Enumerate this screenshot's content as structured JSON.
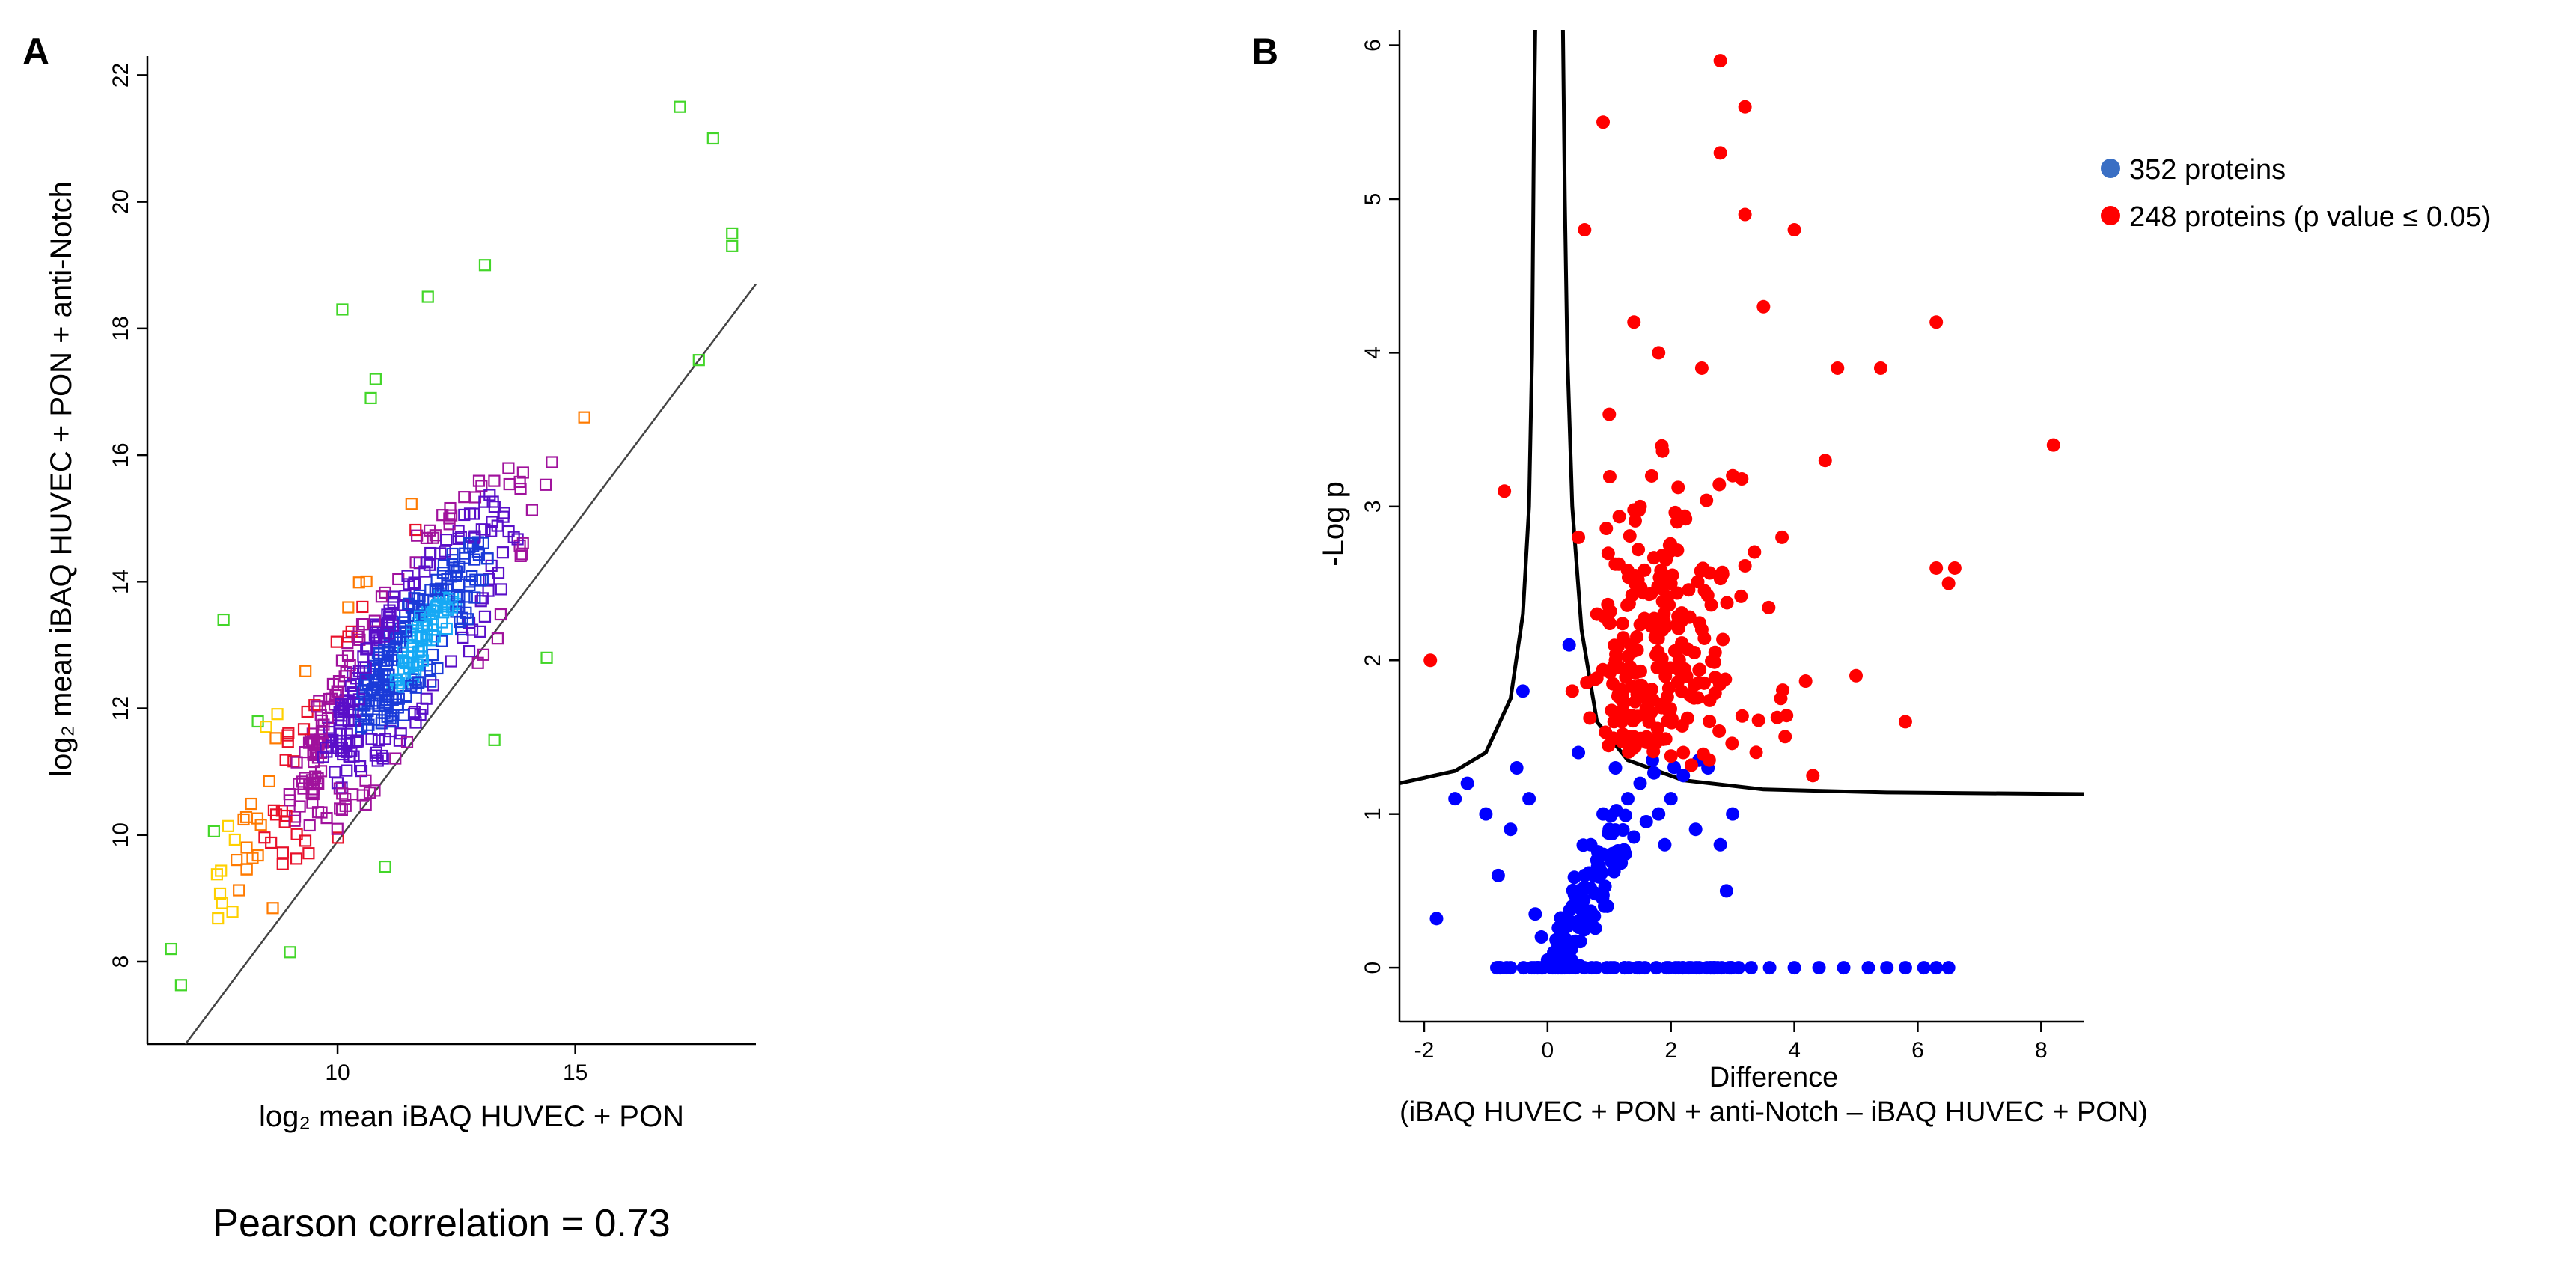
{
  "panels": {
    "a": {
      "letter": "A"
    },
    "b": {
      "letter": "B"
    }
  },
  "chart_data": [
    {
      "type": "scatter",
      "panel": "A",
      "xlabel": "log₂ mean iBAQ HUVEC + PON",
      "ylabel": "log₂ mean iBAQ HUVEC + PON + anti-Notch",
      "xlim": [
        6.0,
        18.8
      ],
      "ylim": [
        6.7,
        22.3
      ],
      "xticks": [
        10,
        15
      ],
      "yticks": [
        8,
        10,
        12,
        14,
        16,
        18,
        20,
        22
      ],
      "annotation": "Pearson correlation = 0.73",
      "marker": "open-square",
      "color_scale": "density (cyan → blue → purple → red → orange → yellow → green)",
      "reference_line": {
        "from": [
          6.8,
          6.7
        ],
        "to": [
          18.8,
          18.7
        ]
      },
      "n_points": 610,
      "series": [
        {
          "values": [
            [
              6.5,
              8.2
            ],
            [
              9.0,
              8.15
            ],
            [
              10.1,
              18.3
            ],
            [
              11.9,
              18.5
            ],
            [
              13.1,
              19.0
            ],
            [
              17.2,
              21.5
            ],
            [
              17.9,
              21.0
            ],
            [
              18.3,
              19.5
            ],
            [
              18.3,
              19.3
            ],
            [
              17.6,
              17.5
            ],
            [
              14.4,
              12.8
            ],
            [
              13.3,
              11.5
            ],
            [
              11.0,
              9.5
            ],
            [
              7.6,
              13.4
            ],
            [
              10.8,
              17.2
            ],
            [
              10.7,
              16.9
            ]
          ]
        }
      ]
    },
    {
      "type": "scatter",
      "panel": "B",
      "xlabel": "Difference",
      "xlabel2": "(iBAQ HUVEC  + PON + anti-Notch – iBAQ HUVEC  + PON)",
      "ylabel": "-Log p",
      "xlim": [
        -2.4,
        8.7
      ],
      "ylim": [
        -0.35,
        6.1
      ],
      "xticks": [
        -2,
        0,
        2,
        4,
        6,
        8
      ],
      "yticks": [
        0,
        1,
        2,
        3,
        4,
        5,
        6
      ],
      "legend_position": "top-right",
      "series": [
        {
          "name": "352 proteins",
          "color": "#0000ff",
          "values": [
            [
              -1.8,
              0.32
            ],
            [
              -1.5,
              1.1
            ],
            [
              -1.3,
              1.2
            ],
            [
              -1.0,
              1.0
            ],
            [
              -0.8,
              0.6
            ],
            [
              -0.6,
              0.9
            ],
            [
              -0.5,
              1.3
            ],
            [
              -0.4,
              1.8
            ],
            [
              -0.3,
              1.1
            ],
            [
              -0.2,
              0.35
            ],
            [
              -0.1,
              0.2
            ],
            [
              0.0,
              0.05
            ],
            [
              0.1,
              0.1
            ],
            [
              0.2,
              0.2
            ],
            [
              0.3,
              0.3
            ],
            [
              0.35,
              2.1
            ],
            [
              0.4,
              0.4
            ],
            [
              0.5,
              1.4
            ],
            [
              0.5,
              0.5
            ],
            [
              0.6,
              0.6
            ],
            [
              0.7,
              0.8
            ],
            [
              0.8,
              0.7
            ],
            [
              0.9,
              1.0
            ],
            [
              1.0,
              0.9
            ],
            [
              1.1,
              1.3
            ],
            [
              1.2,
              0.75
            ],
            [
              1.3,
              1.1
            ],
            [
              1.4,
              0.85
            ],
            [
              1.5,
              1.2
            ],
            [
              1.6,
              0.95
            ],
            [
              1.7,
              1.35
            ],
            [
              1.8,
              1.0
            ],
            [
              1.9,
              0.8
            ],
            [
              2.0,
              1.1
            ],
            [
              2.2,
              1.25
            ],
            [
              2.4,
              0.9
            ],
            [
              2.6,
              1.3
            ],
            [
              2.8,
              0.8
            ],
            [
              2.9,
              0.5
            ],
            [
              3.0,
              1.0
            ],
            [
              3.3,
              0.0
            ],
            [
              3.6,
              0.0
            ],
            [
              4.0,
              0.0
            ],
            [
              4.4,
              0.0
            ],
            [
              4.8,
              0.0
            ],
            [
              5.2,
              0.0
            ],
            [
              5.5,
              0.0
            ],
            [
              5.8,
              0.0
            ],
            [
              6.1,
              0.0
            ],
            [
              6.3,
              0.0
            ],
            [
              6.5,
              0.0
            ]
          ]
        },
        {
          "name": "248 proteins (p value ≤ 0.05)",
          "color": "#ff0000",
          "values": [
            [
              -1.9,
              2.0
            ],
            [
              -0.7,
              3.1
            ],
            [
              0.5,
              2.8
            ],
            [
              0.9,
              5.5
            ],
            [
              2.8,
              5.9
            ],
            [
              2.8,
              5.3
            ],
            [
              3.2,
              5.6
            ],
            [
              3.2,
              4.9
            ],
            [
              3.5,
              4.3
            ],
            [
              4.0,
              4.8
            ],
            [
              4.7,
              3.9
            ],
            [
              5.4,
              3.9
            ],
            [
              6.3,
              4.2
            ],
            [
              8.2,
              3.4
            ],
            [
              6.6,
              2.6
            ],
            [
              6.5,
              2.5
            ],
            [
              6.3,
              2.6
            ],
            [
              5.8,
              1.6
            ],
            [
              5.0,
              1.9
            ],
            [
              4.3,
              1.25
            ],
            [
              1.2,
              1.6
            ],
            [
              2.0,
              2.5
            ],
            [
              1.5,
              3.0
            ],
            [
              2.5,
              2.2
            ],
            [
              3.0,
              3.2
            ],
            [
              2.2,
              1.4
            ],
            [
              0.8,
              2.3
            ],
            [
              1.0,
              3.6
            ],
            [
              1.8,
              4.0
            ],
            [
              3.8,
              2.8
            ],
            [
              4.5,
              3.3
            ],
            [
              0.6,
              4.8
            ],
            [
              1.4,
              4.2
            ],
            [
              2.5,
              3.9
            ],
            [
              0.4,
              1.8
            ],
            [
              1.1,
              2.0
            ],
            [
              2.1,
              2.9
            ]
          ]
        }
      ],
      "threshold_curves": [
        {
          "side": "left",
          "values": [
            [
              -2.4,
              1.2
            ],
            [
              -1.5,
              1.28
            ],
            [
              -1.0,
              1.4
            ],
            [
              -0.6,
              1.75
            ],
            [
              -0.4,
              2.3
            ],
            [
              -0.3,
              3.0
            ],
            [
              -0.25,
              4.0
            ],
            [
              -0.22,
              5.5
            ],
            [
              -0.2,
              6.3
            ]
          ]
        },
        {
          "side": "right",
          "values": [
            [
              0.25,
              6.3
            ],
            [
              0.28,
              5.0
            ],
            [
              0.32,
              4.0
            ],
            [
              0.4,
              3.0
            ],
            [
              0.55,
              2.2
            ],
            [
              0.8,
              1.6
            ],
            [
              1.3,
              1.35
            ],
            [
              2.2,
              1.22
            ],
            [
              3.5,
              1.16
            ],
            [
              5.5,
              1.14
            ],
            [
              8.7,
              1.13
            ]
          ]
        }
      ]
    }
  ]
}
